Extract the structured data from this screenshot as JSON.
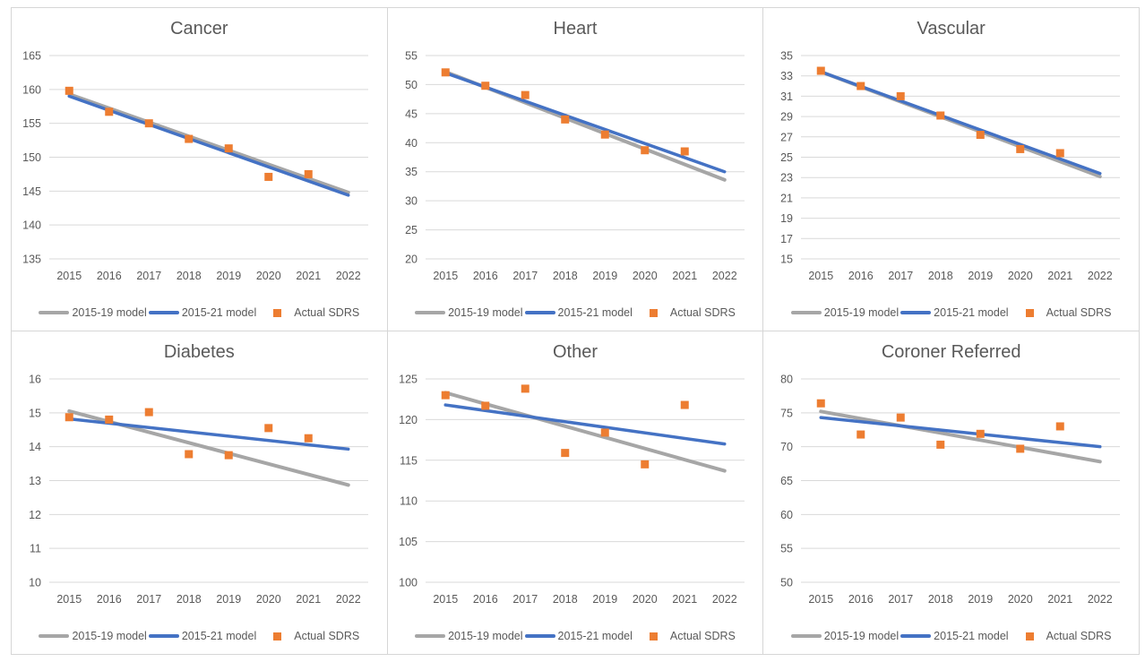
{
  "colors": {
    "model_2015_19": "#a6a6a6",
    "model_2015_21": "#4472c4",
    "actual": "#ed7d31",
    "gridline": "#d9d9d9",
    "panel_border": "#d6d6d6",
    "text": "#595959"
  },
  "legend": {
    "items": [
      {
        "label": "2015-19 model",
        "swatch": "line",
        "color": "#a6a6a6"
      },
      {
        "label": "2015-21 model",
        "swatch": "line",
        "color": "#4472c4"
      },
      {
        "label": "Actual SDRS",
        "swatch": "square",
        "color": "#ed7d31"
      }
    ]
  },
  "years": [
    2015,
    2016,
    2017,
    2018,
    2019,
    2020,
    2021,
    2022
  ],
  "chart_data": [
    {
      "type": "line",
      "title": "Cancer",
      "ylim": [
        135,
        165
      ],
      "ytick_step": 5,
      "categories": [
        2015,
        2016,
        2017,
        2018,
        2019,
        2020,
        2021,
        2022
      ],
      "series": [
        {
          "name": "2015-19 model",
          "style": "line",
          "color": "#a6a6a6",
          "x": [
            2015,
            2022
          ],
          "values": [
            159.3,
            144.8
          ]
        },
        {
          "name": "2015-21 model",
          "style": "line",
          "color": "#4472c4",
          "x": [
            2015,
            2022
          ],
          "values": [
            159.0,
            144.4
          ]
        },
        {
          "name": "Actual SDRS",
          "style": "scatter",
          "color": "#ed7d31",
          "x": [
            2015,
            2016,
            2017,
            2018,
            2019,
            2020,
            2021
          ],
          "values": [
            159.8,
            156.7,
            155.0,
            152.7,
            151.3,
            147.1,
            147.5
          ]
        }
      ]
    },
    {
      "type": "line",
      "title": "Heart",
      "ylim": [
        20,
        55
      ],
      "ytick_step": 5,
      "categories": [
        2015,
        2016,
        2017,
        2018,
        2019,
        2020,
        2021,
        2022
      ],
      "series": [
        {
          "name": "2015-19 model",
          "style": "line",
          "color": "#a6a6a6",
          "x": [
            2015,
            2022
          ],
          "values": [
            52.2,
            33.6
          ]
        },
        {
          "name": "2015-21 model",
          "style": "line",
          "color": "#4472c4",
          "x": [
            2015,
            2022
          ],
          "values": [
            52.0,
            35.0
          ]
        },
        {
          "name": "Actual SDRS",
          "style": "scatter",
          "color": "#ed7d31",
          "x": [
            2015,
            2016,
            2017,
            2018,
            2019,
            2020,
            2021
          ],
          "values": [
            52.1,
            49.8,
            48.2,
            44.0,
            41.4,
            38.7,
            38.5
          ]
        }
      ]
    },
    {
      "type": "line",
      "title": "Vascular",
      "ylim": [
        15,
        35
      ],
      "ytick_step": 2,
      "categories": [
        2015,
        2016,
        2017,
        2018,
        2019,
        2020,
        2021,
        2022
      ],
      "series": [
        {
          "name": "2015-19 model",
          "style": "line",
          "color": "#a6a6a6",
          "x": [
            2015,
            2022
          ],
          "values": [
            33.4,
            23.1
          ]
        },
        {
          "name": "2015-21 model",
          "style": "line",
          "color": "#4472c4",
          "x": [
            2015,
            2022
          ],
          "values": [
            33.4,
            23.4
          ]
        },
        {
          "name": "Actual SDRS",
          "style": "scatter",
          "color": "#ed7d31",
          "x": [
            2015,
            2016,
            2017,
            2018,
            2019,
            2020,
            2021
          ],
          "values": [
            33.5,
            32.0,
            31.0,
            29.1,
            27.2,
            25.8,
            25.4
          ]
        }
      ]
    },
    {
      "type": "line",
      "title": "Diabetes",
      "ylim": [
        10,
        16
      ],
      "ytick_step": 1,
      "categories": [
        2015,
        2016,
        2017,
        2018,
        2019,
        2020,
        2021,
        2022
      ],
      "series": [
        {
          "name": "2015-19 model",
          "style": "line",
          "color": "#a6a6a6",
          "x": [
            2015,
            2022
          ],
          "values": [
            15.05,
            12.87
          ]
        },
        {
          "name": "2015-21 model",
          "style": "line",
          "color": "#4472c4",
          "x": [
            2015,
            2022
          ],
          "values": [
            14.82,
            13.93
          ]
        },
        {
          "name": "Actual SDRS",
          "style": "scatter",
          "color": "#ed7d31",
          "x": [
            2015,
            2016,
            2017,
            2018,
            2019,
            2020,
            2021
          ],
          "values": [
            14.87,
            14.8,
            15.02,
            13.78,
            13.75,
            14.55,
            14.25
          ]
        }
      ]
    },
    {
      "type": "line",
      "title": "Other",
      "ylim": [
        100,
        125
      ],
      "ytick_step": 5,
      "categories": [
        2015,
        2016,
        2017,
        2018,
        2019,
        2020,
        2021,
        2022
      ],
      "series": [
        {
          "name": "2015-19 model",
          "style": "line",
          "color": "#a6a6a6",
          "x": [
            2015,
            2022
          ],
          "values": [
            123.3,
            113.7
          ]
        },
        {
          "name": "2015-21 model",
          "style": "line",
          "color": "#4472c4",
          "x": [
            2015,
            2022
          ],
          "values": [
            121.8,
            117.0
          ]
        },
        {
          "name": "Actual SDRS",
          "style": "scatter",
          "color": "#ed7d31",
          "x": [
            2015,
            2016,
            2017,
            2018,
            2019,
            2020,
            2021
          ],
          "values": [
            123.0,
            121.7,
            123.8,
            115.9,
            118.4,
            114.5,
            121.8
          ]
        }
      ]
    },
    {
      "type": "line",
      "title": "Coroner Referred",
      "ylim": [
        50,
        80
      ],
      "ytick_step": 5,
      "categories": [
        2015,
        2016,
        2017,
        2018,
        2019,
        2020,
        2021,
        2022
      ],
      "series": [
        {
          "name": "2015-19 model",
          "style": "line",
          "color": "#a6a6a6",
          "x": [
            2015,
            2022
          ],
          "values": [
            75.2,
            67.8
          ]
        },
        {
          "name": "2015-21 model",
          "style": "line",
          "color": "#4472c4",
          "x": [
            2015,
            2022
          ],
          "values": [
            74.3,
            70.0
          ]
        },
        {
          "name": "Actual SDRS",
          "style": "scatter",
          "color": "#ed7d31",
          "x": [
            2015,
            2016,
            2017,
            2018,
            2019,
            2020,
            2021
          ],
          "values": [
            76.4,
            71.8,
            74.3,
            70.3,
            71.9,
            69.7,
            73.0
          ]
        }
      ]
    }
  ]
}
